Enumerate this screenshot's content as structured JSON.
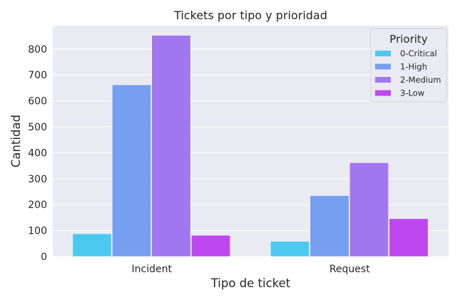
{
  "chart_data": {
    "type": "bar",
    "title": "Tickets por tipo y prioridad",
    "xlabel": "Tipo de ticket",
    "ylabel": "Cantidad",
    "categories": [
      "Incident",
      "Request"
    ],
    "series": [
      {
        "name": "0-Critical",
        "values": [
          88,
          59
        ],
        "color": "#4cc9f0"
      },
      {
        "name": "1-High",
        "values": [
          662,
          235
        ],
        "color": "#779ff0"
      },
      {
        "name": "2-Medium",
        "values": [
          853,
          362
        ],
        "color": "#a177f0"
      },
      {
        "name": "3-Low",
        "values": [
          82,
          146
        ],
        "color": "#bd47f0"
      }
    ],
    "ylim": [
      0,
      890
    ],
    "yticks": [
      0,
      100,
      200,
      300,
      400,
      500,
      600,
      700,
      800
    ],
    "grid": true,
    "legend": {
      "title": "Priority",
      "placement": "top-right"
    },
    "background_color": "#eaeaf2"
  }
}
